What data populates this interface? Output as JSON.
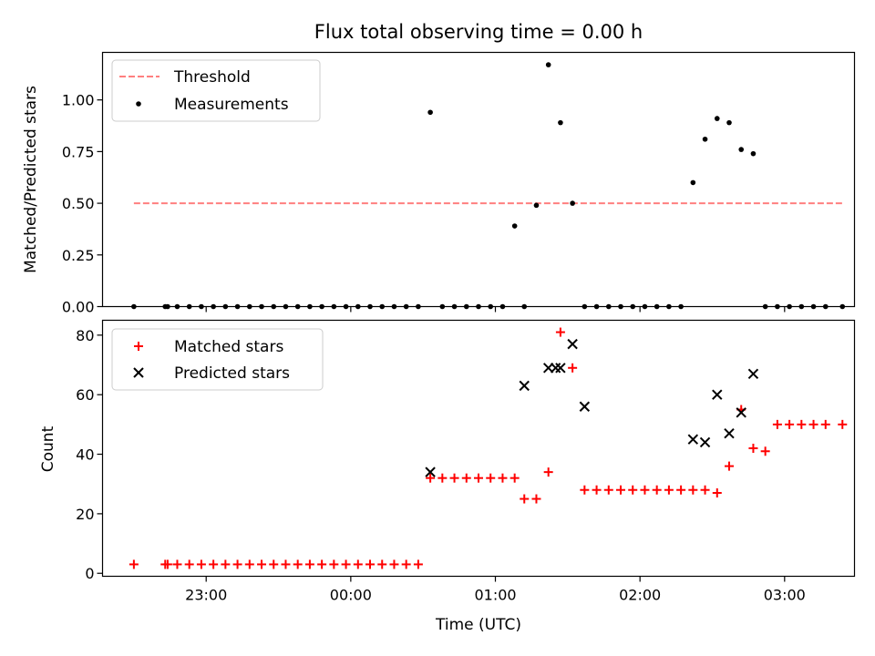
{
  "figure": {
    "title": "Flux total observing time = 0.00 h",
    "xlabel": "Time (UTC)"
  },
  "chart_data": [
    {
      "type": "scatter",
      "ylabel": "Matched/Predicted stars",
      "ylim": [
        0,
        1.23
      ],
      "yticks": [
        0,
        0.25,
        0.5,
        0.75,
        1.0
      ],
      "ytick_labels": [
        "0.00",
        "0.25",
        "0.50",
        "0.75",
        "1.00"
      ],
      "xlim": [
        "22:17",
        "03:29"
      ],
      "legend": {
        "position": "top-left",
        "entries": [
          "Threshold",
          "Measurements"
        ]
      },
      "series": [
        {
          "name": "Threshold",
          "kind": "dashed-line",
          "color": "#ff7f7f",
          "x": [
            "22:30",
            "03:24"
          ],
          "y": [
            0.5,
            0.5
          ]
        },
        {
          "name": "Measurements",
          "kind": "points",
          "color": "#000000",
          "x": [
            "22:30",
            "22:43",
            "22:44",
            "22:48",
            "22:53",
            "22:58",
            "23:03",
            "23:08",
            "23:13",
            "23:18",
            "23:23",
            "23:28",
            "23:33",
            "23:38",
            "23:43",
            "23:48",
            "23:53",
            "23:58",
            "00:03",
            "00:08",
            "00:13",
            "00:18",
            "00:23",
            "00:28",
            "00:33",
            "00:38",
            "00:43",
            "00:48",
            "00:53",
            "00:58",
            "01:03",
            "01:08",
            "01:12",
            "01:17",
            "01:22",
            "01:27",
            "01:32",
            "01:37",
            "01:42",
            "01:47",
            "01:52",
            "01:57",
            "02:02",
            "02:07",
            "02:12",
            "02:17",
            "02:22",
            "02:27",
            "02:32",
            "02:37",
            "02:42",
            "02:47",
            "02:52",
            "02:57",
            "03:02",
            "03:07",
            "03:12",
            "03:17",
            "03:24"
          ],
          "y": [
            0,
            0,
            0,
            0,
            0,
            0,
            0,
            0,
            0,
            0,
            0,
            0,
            0,
            0,
            0,
            0,
            0,
            0,
            0,
            0,
            0,
            0,
            0,
            0,
            0.94,
            0,
            0,
            0,
            0,
            0,
            0,
            0.39,
            0,
            0.49,
            1.17,
            0.89,
            0.5,
            0,
            0,
            0,
            0,
            0,
            0,
            0,
            0,
            0,
            0.6,
            0.81,
            0.91,
            0.89,
            0.76,
            0.74,
            0,
            0,
            0,
            0,
            0,
            0,
            0
          ]
        }
      ]
    },
    {
      "type": "scatter",
      "ylabel": "Count",
      "ylim": [
        -1,
        85
      ],
      "yticks": [
        0,
        20,
        40,
        60,
        80
      ],
      "ytick_labels": [
        "0",
        "20",
        "40",
        "60",
        "80"
      ],
      "xlim": [
        "22:17",
        "03:29"
      ],
      "xticks": [
        "23:00",
        "00:00",
        "01:00",
        "02:00",
        "03:00"
      ],
      "legend": {
        "position": "top-left",
        "entries": [
          "Matched stars",
          "Predicted stars"
        ]
      },
      "series": [
        {
          "name": "Matched stars",
          "marker": "plus",
          "color": "#ff0000",
          "x": [
            "22:30",
            "22:43",
            "22:44",
            "22:48",
            "22:53",
            "22:58",
            "23:03",
            "23:08",
            "23:13",
            "23:18",
            "23:23",
            "23:28",
            "23:33",
            "23:38",
            "23:43",
            "23:48",
            "23:53",
            "23:58",
            "00:03",
            "00:08",
            "00:13",
            "00:18",
            "00:23",
            "00:28",
            "00:33",
            "00:38",
            "00:43",
            "00:48",
            "00:53",
            "00:58",
            "01:03",
            "01:08",
            "01:12",
            "01:17",
            "01:22",
            "01:27",
            "01:32",
            "01:37",
            "01:42",
            "01:47",
            "01:52",
            "01:57",
            "02:02",
            "02:07",
            "02:12",
            "02:17",
            "02:22",
            "02:27",
            "02:32",
            "02:37",
            "02:42",
            "02:47",
            "02:52",
            "02:57",
            "03:02",
            "03:07",
            "03:12",
            "03:17",
            "03:24"
          ],
          "y": [
            3,
            3,
            3,
            3,
            3,
            3,
            3,
            3,
            3,
            3,
            3,
            3,
            3,
            3,
            3,
            3,
            3,
            3,
            3,
            3,
            3,
            3,
            3,
            3,
            32,
            32,
            32,
            32,
            32,
            32,
            32,
            32,
            25,
            25,
            34,
            81,
            69,
            28,
            28,
            28,
            28,
            28,
            28,
            28,
            28,
            28,
            28,
            28,
            27,
            36,
            55,
            42,
            41,
            50,
            50,
            50,
            50,
            50,
            50
          ]
        },
        {
          "name": "Predicted stars",
          "marker": "x",
          "color": "#000000",
          "x": [
            "00:33",
            "01:12",
            "01:22",
            "01:25",
            "01:27",
            "01:32",
            "01:37",
            "02:22",
            "02:27",
            "02:32",
            "02:37",
            "02:42",
            "02:47"
          ],
          "y": [
            34,
            63,
            69,
            69,
            69,
            77,
            56,
            45,
            44,
            60,
            47,
            54,
            67
          ]
        }
      ]
    }
  ]
}
